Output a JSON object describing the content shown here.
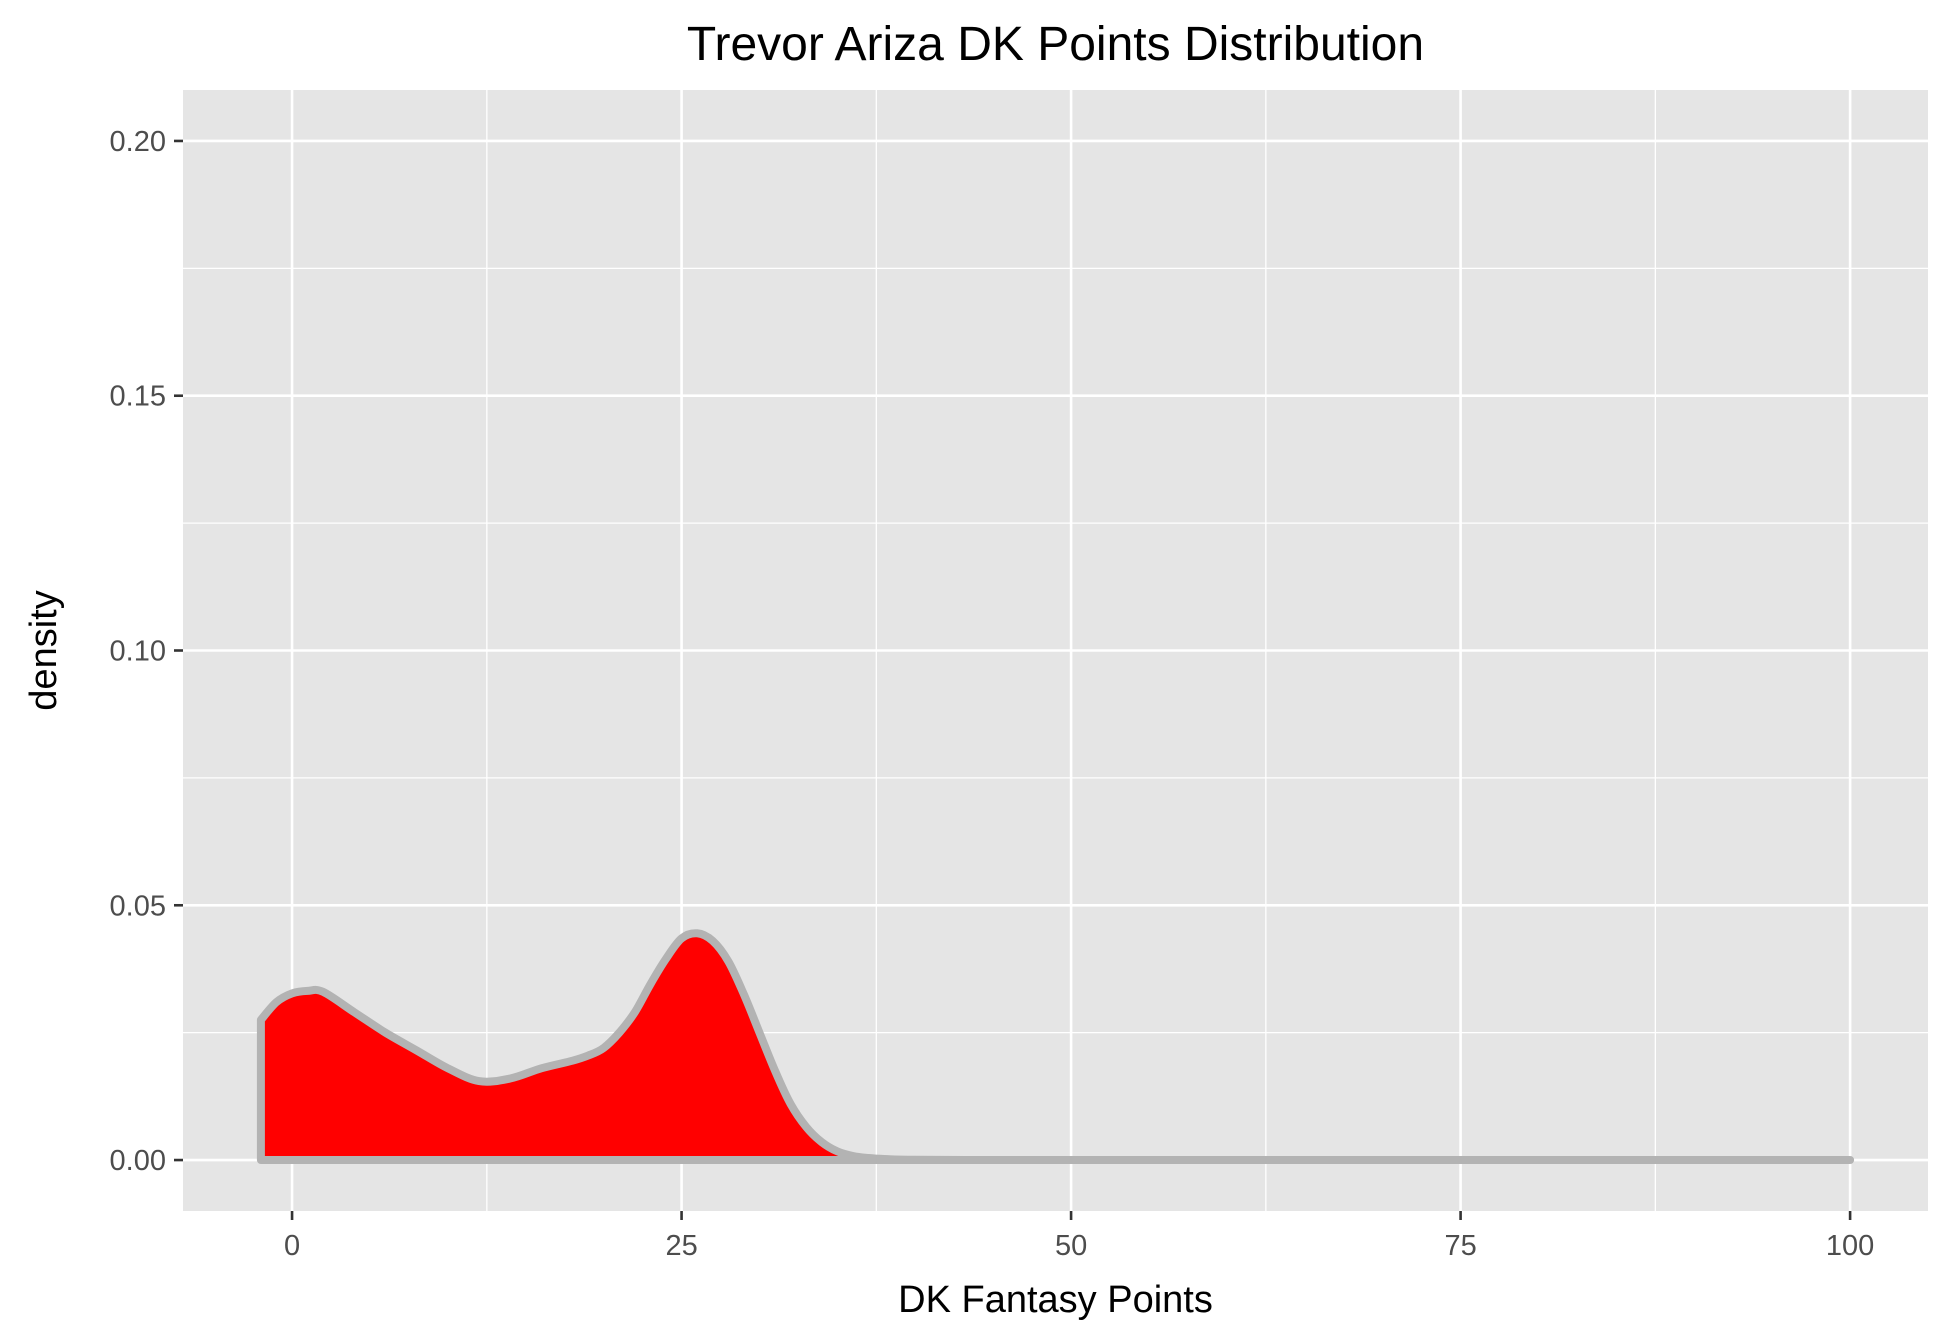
{
  "chart_data": {
    "type": "area",
    "title": "Trevor Ariza DK Points Distribution",
    "xlabel": "DK Fantasy Points",
    "ylabel": "density",
    "xlim": [
      -7,
      105
    ],
    "ylim": [
      -0.01,
      0.21
    ],
    "x_ticks": [
      0,
      25,
      50,
      75,
      100
    ],
    "x_tick_labels": [
      "0",
      "25",
      "50",
      "75",
      "100"
    ],
    "y_ticks": [
      0,
      0.05,
      0.1,
      0.15,
      0.2
    ],
    "y_tick_labels": [
      "0.00",
      "0.05",
      "0.10",
      "0.15",
      "0.20"
    ],
    "grid": true,
    "legend": "none",
    "series": [
      {
        "fill_color": "#ff0000",
        "line_color": "#b3b3b3",
        "x": [
          -2,
          -1,
          0,
          1,
          2,
          4,
          6,
          8,
          10,
          12,
          14,
          16,
          18,
          19,
          20,
          21,
          22,
          23,
          24,
          25,
          26,
          27,
          28,
          29,
          30,
          31,
          32,
          33,
          34,
          35,
          36,
          37,
          38,
          40,
          45,
          50,
          60,
          70,
          80,
          90,
          100
        ],
        "y": [
          0.0275,
          0.031,
          0.0327,
          0.0332,
          0.033,
          0.029,
          0.025,
          0.0215,
          0.018,
          0.0155,
          0.016,
          0.018,
          0.0195,
          0.0205,
          0.022,
          0.025,
          0.029,
          0.0345,
          0.0395,
          0.0435,
          0.0445,
          0.043,
          0.039,
          0.0325,
          0.025,
          0.0175,
          0.011,
          0.0065,
          0.0035,
          0.0017,
          0.0008,
          0.0004,
          0.0002,
          5e-05,
          0.0,
          0.0,
          0.0,
          0.0,
          0.0,
          0.0,
          0.0
        ]
      }
    ]
  }
}
